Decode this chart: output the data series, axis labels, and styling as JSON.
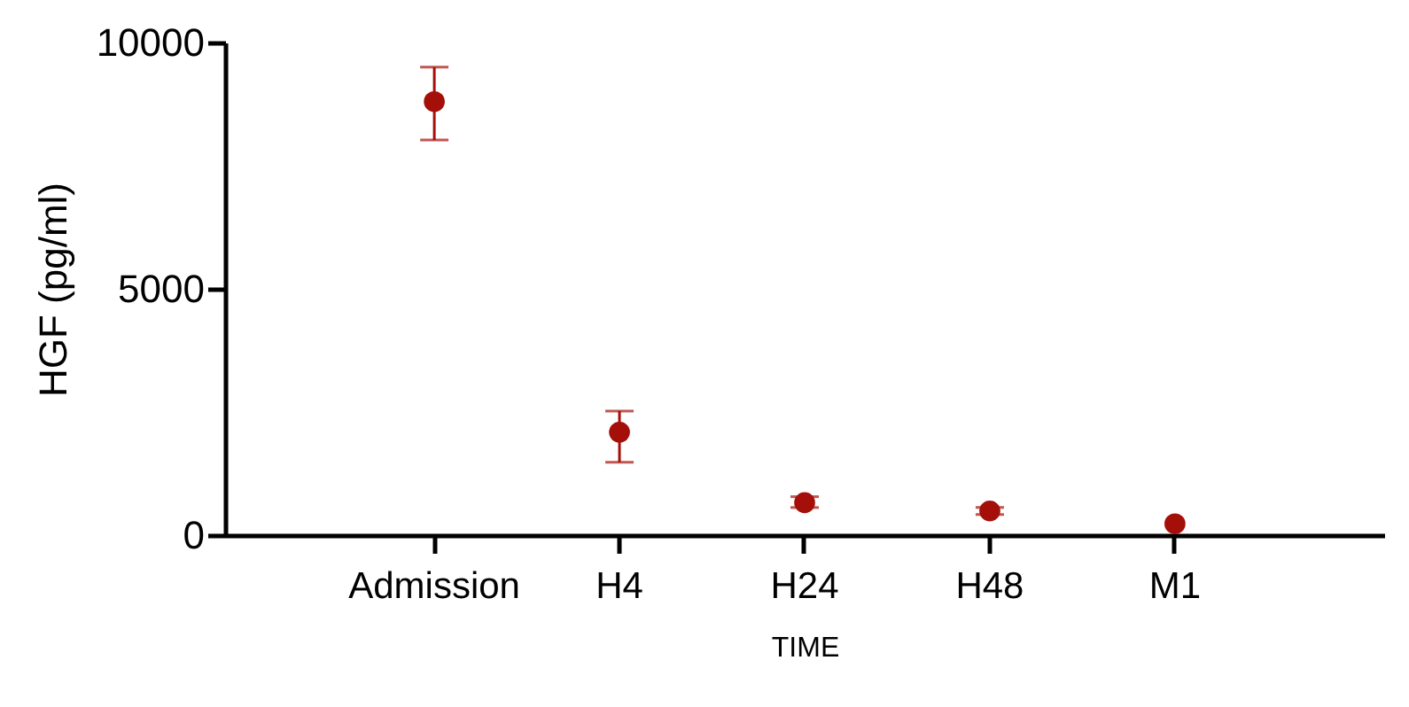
{
  "chart_data": {
    "type": "scatter",
    "xlabel": "TIME",
    "ylabel": "HGF (pg/ml)",
    "categories": [
      "Admission",
      "H4",
      "H24",
      "H48",
      "M1"
    ],
    "series": [
      {
        "color": "#a50f0a",
        "values": [
          8800,
          2090,
          660,
          490,
          230
        ],
        "errors": [
          [
            8020,
            9500
          ],
          [
            1480,
            2520
          ],
          [
            560,
            780
          ],
          [
            420,
            560
          ],
          null
        ]
      }
    ],
    "ylim": [
      0,
      10000
    ],
    "yticks": [
      0,
      {
        "value": 5000,
        "label": "5000"
      },
      {
        "value": 10000,
        "label": "10000"
      }
    ],
    "grid": false,
    "marker": "circle"
  }
}
